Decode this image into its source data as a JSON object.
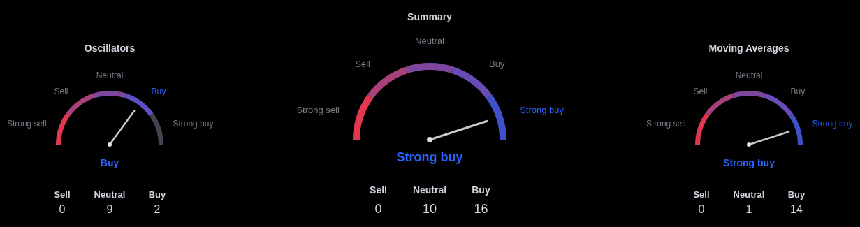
{
  "chart_data": [
    {
      "type": "donut",
      "title": "Oscillators",
      "categories": [
        "Strong sell",
        "Sell",
        "Neutral",
        "Buy",
        "Strong buy"
      ],
      "values": [
        20,
        20,
        20,
        20,
        20
      ],
      "colors": [
        "#e2374f",
        "#a8407a",
        "#7e479e",
        "#5a4fc4",
        "#434651"
      ],
      "needle": "Buy",
      "annotations": [
        "Buy",
        "Sell",
        "0",
        "Neutral",
        "9",
        "Buy",
        "2"
      ]
    },
    {
      "type": "donut",
      "title": "Summary",
      "categories": [
        "Strong sell",
        "Sell",
        "Neutral",
        "Buy",
        "Strong buy"
      ],
      "values": [
        20,
        20,
        20,
        20,
        20
      ],
      "colors": [
        "#e2374f",
        "#a8407a",
        "#7e479e",
        "#6a4cb8",
        "#3f51c9"
      ],
      "needle": "Strong buy",
      "annotations": [
        "Strong buy",
        "Sell",
        "0",
        "Neutral",
        "10",
        "Buy",
        "16"
      ]
    },
    {
      "type": "donut",
      "title": "Moving Averages",
      "categories": [
        "Strong sell",
        "Sell",
        "Neutral",
        "Buy",
        "Strong buy"
      ],
      "values": [
        20,
        20,
        20,
        20,
        20
      ],
      "colors": [
        "#e2374f",
        "#a8407a",
        "#7e479e",
        "#6a4cb8",
        "#3f51c9"
      ],
      "needle": "Strong buy",
      "annotations": [
        "Strong buy",
        "Sell",
        "0",
        "Neutral",
        "1",
        "Buy",
        "14"
      ]
    }
  ]
}
